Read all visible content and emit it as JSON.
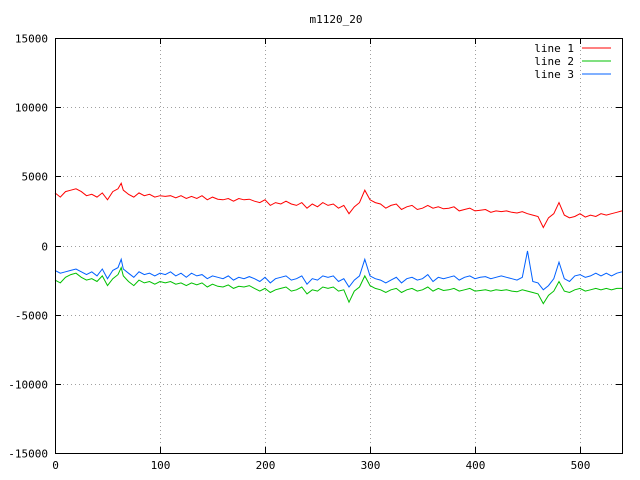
{
  "chart_data": {
    "type": "line",
    "title": "m1120_20",
    "xlim": [
      0,
      540
    ],
    "ylim": [
      -15000,
      15000
    ],
    "x_ticks": [
      0,
      100,
      200,
      300,
      400,
      500
    ],
    "y_ticks": [
      -15000,
      -10000,
      -5000,
      0,
      5000,
      10000,
      15000
    ],
    "grid": true,
    "legend_position": "top-right",
    "series": [
      {
        "name": "line 1",
        "color": "#ff0000",
        "x": [
          0,
          5,
          10,
          15,
          20,
          25,
          30,
          35,
          40,
          45,
          50,
          55,
          60,
          63,
          65,
          70,
          75,
          80,
          85,
          90,
          95,
          100,
          105,
          110,
          115,
          120,
          125,
          130,
          135,
          140,
          145,
          150,
          155,
          160,
          165,
          170,
          175,
          180,
          185,
          190,
          195,
          200,
          205,
          210,
          215,
          220,
          225,
          230,
          235,
          240,
          245,
          250,
          255,
          260,
          265,
          270,
          275,
          280,
          285,
          290,
          295,
          300,
          305,
          310,
          315,
          320,
          325,
          330,
          335,
          340,
          345,
          350,
          355,
          360,
          365,
          370,
          375,
          380,
          385,
          390,
          395,
          400,
          405,
          410,
          415,
          420,
          425,
          430,
          435,
          440,
          445,
          450,
          455,
          460,
          465,
          470,
          475,
          480,
          485,
          490,
          495,
          500,
          505,
          510,
          515,
          520,
          525,
          530,
          535,
          540
        ],
        "y": [
          3800,
          3500,
          3900,
          4000,
          4100,
          3900,
          3600,
          3700,
          3500,
          3800,
          3300,
          3900,
          4100,
          4500,
          4000,
          3700,
          3500,
          3800,
          3600,
          3700,
          3500,
          3600,
          3550,
          3600,
          3450,
          3600,
          3400,
          3550,
          3400,
          3600,
          3300,
          3500,
          3350,
          3300,
          3400,
          3200,
          3400,
          3300,
          3350,
          3200,
          3100,
          3300,
          2900,
          3100,
          3000,
          3200,
          3000,
          2900,
          3100,
          2700,
          3000,
          2800,
          3100,
          2900,
          3000,
          2700,
          2900,
          2300,
          2800,
          3100,
          4000,
          3300,
          3100,
          3000,
          2700,
          2900,
          3000,
          2600,
          2800,
          2900,
          2600,
          2700,
          2900,
          2700,
          2800,
          2650,
          2700,
          2800,
          2500,
          2600,
          2700,
          2500,
          2550,
          2600,
          2400,
          2500,
          2450,
          2500,
          2400,
          2350,
          2450,
          2300,
          2200,
          2100,
          1300,
          2000,
          2300,
          3100,
          2200,
          2000,
          2100,
          2300,
          2050,
          2200,
          2100,
          2300,
          2200,
          2300,
          2400,
          2500
        ]
      },
      {
        "name": "line 2",
        "color": "#00c000",
        "x": [
          0,
          5,
          10,
          15,
          20,
          25,
          30,
          35,
          40,
          45,
          50,
          55,
          60,
          63,
          65,
          70,
          75,
          80,
          85,
          90,
          95,
          100,
          105,
          110,
          115,
          120,
          125,
          130,
          135,
          140,
          145,
          150,
          155,
          160,
          165,
          170,
          175,
          180,
          185,
          190,
          195,
          200,
          205,
          210,
          215,
          220,
          225,
          230,
          235,
          240,
          245,
          250,
          255,
          260,
          265,
          270,
          275,
          280,
          285,
          290,
          295,
          300,
          305,
          310,
          315,
          320,
          325,
          330,
          335,
          340,
          345,
          350,
          355,
          360,
          365,
          370,
          375,
          380,
          385,
          390,
          395,
          400,
          405,
          410,
          415,
          420,
          425,
          430,
          435,
          440,
          445,
          450,
          455,
          460,
          465,
          470,
          475,
          480,
          485,
          490,
          495,
          500,
          505,
          510,
          515,
          520,
          525,
          530,
          535,
          540
        ],
        "y": [
          -2500,
          -2700,
          -2300,
          -2100,
          -2000,
          -2300,
          -2500,
          -2400,
          -2600,
          -2200,
          -2900,
          -2400,
          -2100,
          -1600,
          -2200,
          -2600,
          -2900,
          -2500,
          -2700,
          -2600,
          -2800,
          -2600,
          -2700,
          -2600,
          -2800,
          -2700,
          -2900,
          -2700,
          -2850,
          -2700,
          -3000,
          -2800,
          -2950,
          -3000,
          -2850,
          -3100,
          -2950,
          -3000,
          -2900,
          -3100,
          -3300,
          -3100,
          -3400,
          -3200,
          -3100,
          -3000,
          -3300,
          -3200,
          -3000,
          -3500,
          -3200,
          -3300,
          -3000,
          -3100,
          -3000,
          -3300,
          -3200,
          -4100,
          -3300,
          -3000,
          -2200,
          -2900,
          -3100,
          -3200,
          -3400,
          -3200,
          -3100,
          -3400,
          -3200,
          -3100,
          -3300,
          -3200,
          -3000,
          -3300,
          -3100,
          -3250,
          -3200,
          -3100,
          -3300,
          -3200,
          -3100,
          -3300,
          -3250,
          -3200,
          -3300,
          -3200,
          -3250,
          -3200,
          -3300,
          -3350,
          -3200,
          -3300,
          -3400,
          -3500,
          -4200,
          -3600,
          -3300,
          -2600,
          -3300,
          -3400,
          -3200,
          -3100,
          -3300,
          -3200,
          -3100,
          -3200,
          -3100,
          -3200,
          -3100,
          -3100
        ]
      },
      {
        "name": "line 3",
        "color": "#0060ff",
        "x": [
          0,
          5,
          10,
          15,
          20,
          25,
          30,
          35,
          40,
          45,
          50,
          55,
          60,
          63,
          65,
          70,
          75,
          80,
          85,
          90,
          95,
          100,
          105,
          110,
          115,
          120,
          125,
          130,
          135,
          140,
          145,
          150,
          155,
          160,
          165,
          170,
          175,
          180,
          185,
          190,
          195,
          200,
          205,
          210,
          215,
          220,
          225,
          230,
          235,
          240,
          245,
          250,
          255,
          260,
          265,
          270,
          275,
          280,
          285,
          290,
          295,
          300,
          305,
          310,
          315,
          320,
          325,
          330,
          335,
          340,
          345,
          350,
          355,
          360,
          365,
          370,
          375,
          380,
          385,
          390,
          395,
          400,
          405,
          410,
          415,
          420,
          425,
          430,
          435,
          440,
          445,
          450,
          455,
          460,
          465,
          470,
          475,
          480,
          485,
          490,
          495,
          500,
          505,
          510,
          515,
          520,
          525,
          530,
          535,
          540
        ],
        "y": [
          -1800,
          -2000,
          -1900,
          -1800,
          -1700,
          -1900,
          -2100,
          -1900,
          -2200,
          -1700,
          -2400,
          -1800,
          -1600,
          -1000,
          -1700,
          -2000,
          -2300,
          -1900,
          -2100,
          -2000,
          -2200,
          -2000,
          -2100,
          -1900,
          -2200,
          -2000,
          -2300,
          -2000,
          -2200,
          -2100,
          -2400,
          -2200,
          -2300,
          -2400,
          -2200,
          -2500,
          -2300,
          -2400,
          -2250,
          -2400,
          -2600,
          -2300,
          -2700,
          -2400,
          -2300,
          -2200,
          -2500,
          -2400,
          -2200,
          -2800,
          -2400,
          -2500,
          -2200,
          -2300,
          -2200,
          -2600,
          -2400,
          -3000,
          -2500,
          -2200,
          -1000,
          -2200,
          -2400,
          -2500,
          -2700,
          -2500,
          -2300,
          -2700,
          -2400,
          -2300,
          -2500,
          -2400,
          -2100,
          -2600,
          -2300,
          -2400,
          -2300,
          -2200,
          -2500,
          -2300,
          -2200,
          -2400,
          -2300,
          -2250,
          -2400,
          -2300,
          -2200,
          -2300,
          -2400,
          -2500,
          -2300,
          -400,
          -2600,
          -2700,
          -3200,
          -2900,
          -2400,
          -1200,
          -2400,
          -2600,
          -2200,
          -2100,
          -2300,
          -2200,
          -2000,
          -2200,
          -2000,
          -2200,
          -2000,
          -1900
        ]
      }
    ]
  }
}
